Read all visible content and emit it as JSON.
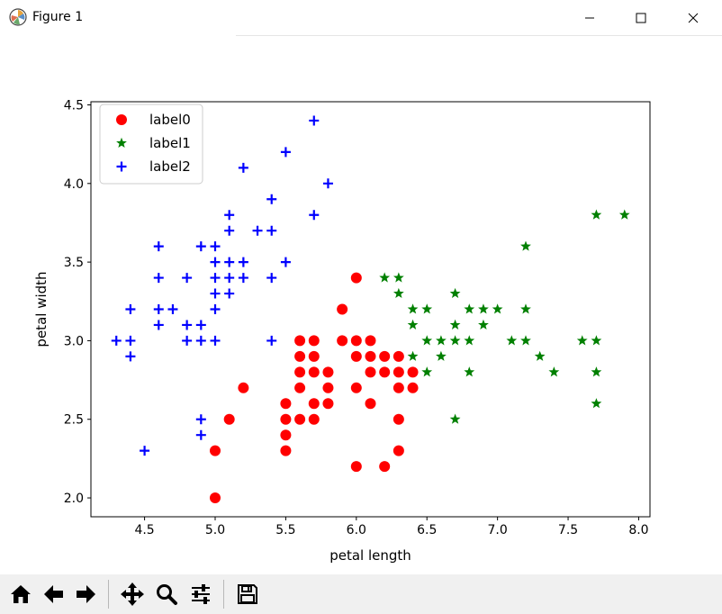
{
  "window": {
    "title": "Figure 1",
    "controls": [
      "minimize",
      "maximize",
      "close"
    ]
  },
  "toolbar": {
    "buttons": [
      {
        "name": "home-button",
        "icon": "home-icon"
      },
      {
        "name": "back-button",
        "icon": "left-arrow-icon"
      },
      {
        "name": "forward-button",
        "icon": "right-arrow-icon"
      },
      {
        "name": "pan-button",
        "icon": "move-icon"
      },
      {
        "name": "zoom-button",
        "icon": "magnifier-icon"
      },
      {
        "name": "configure-subplots-button",
        "icon": "sliders-icon"
      },
      {
        "name": "save-button",
        "icon": "floppy-disk-icon"
      }
    ]
  },
  "chart_data": {
    "type": "scatter",
    "xlabel": "petal length",
    "ylabel": "petal width",
    "xlim": [
      4.12,
      8.08
    ],
    "ylim": [
      1.88,
      4.52
    ],
    "xticks": [
      4.5,
      5.0,
      5.5,
      6.0,
      6.5,
      7.0,
      7.5,
      8.0
    ],
    "xtick_labels": [
      "4.5",
      "5.0",
      "5.5",
      "6.0",
      "6.5",
      "7.0",
      "7.5",
      "8.0"
    ],
    "yticks": [
      2.0,
      2.5,
      3.0,
      3.5,
      4.0,
      4.5
    ],
    "ytick_labels": [
      "2.0",
      "2.5",
      "3.0",
      "3.5",
      "4.0",
      "4.5"
    ],
    "grid": false,
    "legend_position": "top-left",
    "series": [
      {
        "name": "label0",
        "marker": "circle",
        "color": "#ff0000",
        "points": [
          [
            5.0,
            2.0
          ],
          [
            5.0,
            2.3
          ],
          [
            5.1,
            2.5
          ],
          [
            5.2,
            2.7
          ],
          [
            5.5,
            2.3
          ],
          [
            5.5,
            2.4
          ],
          [
            5.5,
            2.5
          ],
          [
            5.5,
            2.6
          ],
          [
            5.6,
            2.5
          ],
          [
            5.6,
            2.7
          ],
          [
            5.6,
            2.8
          ],
          [
            5.6,
            2.9
          ],
          [
            5.6,
            3.0
          ],
          [
            5.7,
            2.5
          ],
          [
            5.7,
            2.6
          ],
          [
            5.7,
            2.8
          ],
          [
            5.7,
            2.9
          ],
          [
            5.7,
            3.0
          ],
          [
            5.8,
            2.6
          ],
          [
            5.8,
            2.7
          ],
          [
            5.8,
            2.8
          ],
          [
            5.9,
            3.0
          ],
          [
            5.9,
            3.2
          ],
          [
            6.0,
            2.2
          ],
          [
            6.0,
            2.7
          ],
          [
            6.0,
            2.9
          ],
          [
            6.0,
            3.0
          ],
          [
            6.0,
            3.4
          ],
          [
            6.1,
            2.6
          ],
          [
            6.1,
            2.8
          ],
          [
            6.1,
            2.9
          ],
          [
            6.1,
            3.0
          ],
          [
            6.2,
            2.2
          ],
          [
            6.2,
            2.8
          ],
          [
            6.2,
            2.9
          ],
          [
            6.3,
            2.3
          ],
          [
            6.3,
            2.5
          ],
          [
            6.3,
            2.7
          ],
          [
            6.3,
            2.8
          ],
          [
            6.3,
            2.9
          ],
          [
            6.4,
            2.7
          ],
          [
            6.4,
            2.8
          ]
        ]
      },
      {
        "name": "label1",
        "marker": "star",
        "color": "#008000",
        "points": [
          [
            6.2,
            3.4
          ],
          [
            6.3,
            3.3
          ],
          [
            6.3,
            3.4
          ],
          [
            6.4,
            2.9
          ],
          [
            6.4,
            3.1
          ],
          [
            6.4,
            3.2
          ],
          [
            6.5,
            2.8
          ],
          [
            6.5,
            3.0
          ],
          [
            6.5,
            3.2
          ],
          [
            6.6,
            2.9
          ],
          [
            6.6,
            3.0
          ],
          [
            6.7,
            2.5
          ],
          [
            6.7,
            3.0
          ],
          [
            6.7,
            3.1
          ],
          [
            6.7,
            3.3
          ],
          [
            6.8,
            2.8
          ],
          [
            6.8,
            3.0
          ],
          [
            6.8,
            3.2
          ],
          [
            6.9,
            3.1
          ],
          [
            6.9,
            3.2
          ],
          [
            7.0,
            3.2
          ],
          [
            7.1,
            3.0
          ],
          [
            7.2,
            3.0
          ],
          [
            7.2,
            3.2
          ],
          [
            7.2,
            3.6
          ],
          [
            7.3,
            2.9
          ],
          [
            7.4,
            2.8
          ],
          [
            7.6,
            3.0
          ],
          [
            7.7,
            2.6
          ],
          [
            7.7,
            2.8
          ],
          [
            7.7,
            3.0
          ],
          [
            7.7,
            3.8
          ],
          [
            7.9,
            3.8
          ]
        ]
      },
      {
        "name": "label2",
        "marker": "plus",
        "color": "#0000ff",
        "points": [
          [
            4.3,
            3.0
          ],
          [
            4.4,
            2.9
          ],
          [
            4.4,
            3.0
          ],
          [
            4.4,
            3.2
          ],
          [
            4.5,
            2.3
          ],
          [
            4.6,
            3.1
          ],
          [
            4.6,
            3.2
          ],
          [
            4.6,
            3.4
          ],
          [
            4.6,
            3.6
          ],
          [
            4.7,
            3.2
          ],
          [
            4.8,
            3.0
          ],
          [
            4.8,
            3.1
          ],
          [
            4.8,
            3.4
          ],
          [
            4.9,
            2.4
          ],
          [
            4.9,
            2.5
          ],
          [
            4.9,
            3.0
          ],
          [
            4.9,
            3.1
          ],
          [
            4.9,
            3.6
          ],
          [
            5.0,
            3.0
          ],
          [
            5.0,
            3.2
          ],
          [
            5.0,
            3.3
          ],
          [
            5.0,
            3.4
          ],
          [
            5.0,
            3.5
          ],
          [
            5.0,
            3.6
          ],
          [
            5.1,
            3.3
          ],
          [
            5.1,
            3.4
          ],
          [
            5.1,
            3.5
          ],
          [
            5.1,
            3.7
          ],
          [
            5.1,
            3.8
          ],
          [
            5.2,
            3.4
          ],
          [
            5.2,
            3.5
          ],
          [
            5.2,
            4.1
          ],
          [
            5.3,
            3.7
          ],
          [
            5.4,
            3.0
          ],
          [
            5.4,
            3.4
          ],
          [
            5.4,
            3.7
          ],
          [
            5.4,
            3.9
          ],
          [
            5.5,
            3.5
          ],
          [
            5.5,
            4.2
          ],
          [
            5.7,
            3.8
          ],
          [
            5.7,
            4.4
          ],
          [
            5.8,
            4.0
          ]
        ]
      }
    ]
  }
}
